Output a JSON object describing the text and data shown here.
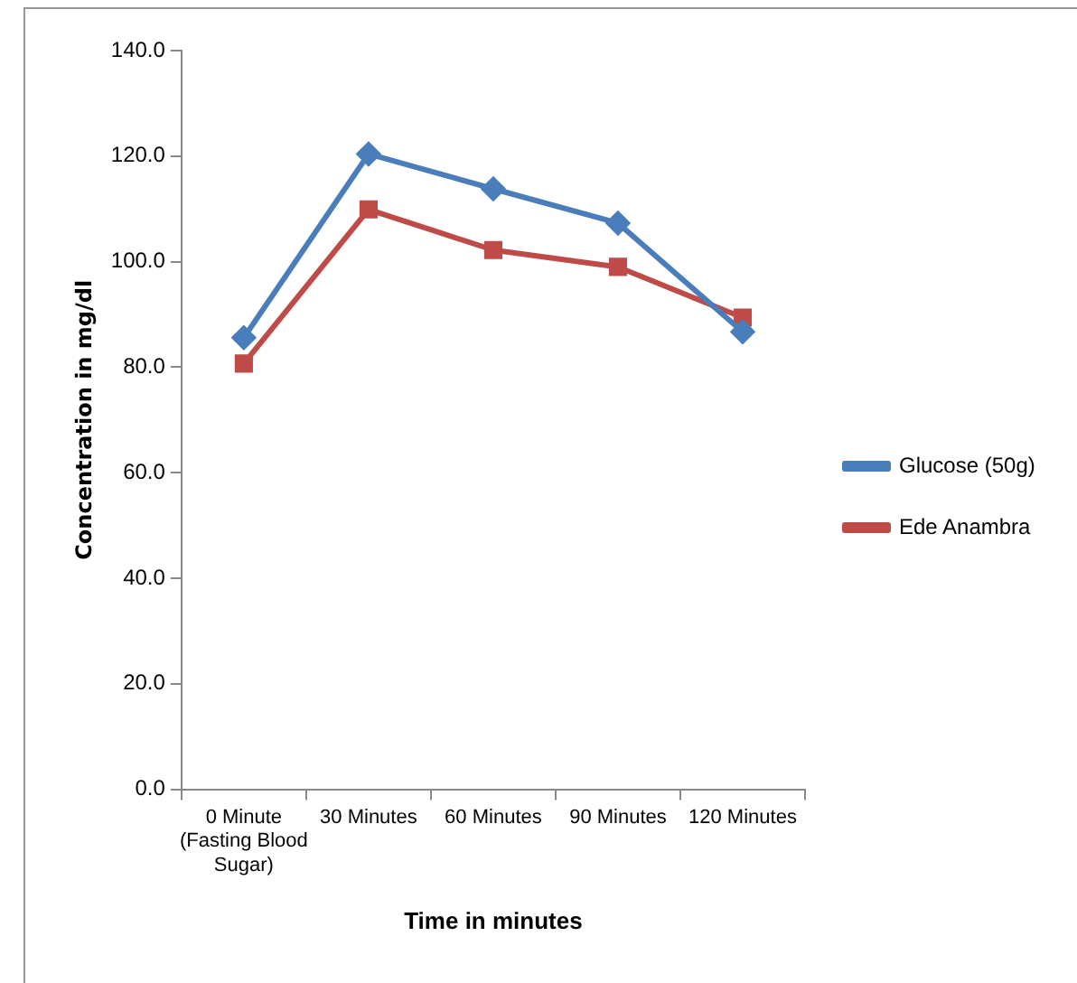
{
  "chart_data": {
    "type": "line",
    "xlabel": "Time in minutes",
    "ylabel": "Concentration in mg/dl",
    "categories": [
      "0 Minute (Fasting Blood Sugar)",
      "30 Minutes",
      "60 Minutes",
      "90 Minutes",
      "120 Minutes"
    ],
    "series": [
      {
        "name": "Glucose (50g)",
        "color": "#4a7ebb",
        "marker": "diamond",
        "values": [
          85.6,
          120.4,
          113.8,
          107.3,
          86.7
        ]
      },
      {
        "name": "Ede Anambra",
        "color": "#be4b48",
        "marker": "square",
        "values": [
          80.7,
          109.9,
          102.2,
          99.0,
          89.4
        ]
      }
    ],
    "ylim": [
      0,
      140
    ],
    "yticks": [
      {
        "value": 0,
        "label": "0.0"
      },
      {
        "value": 20,
        "label": "20.0"
      },
      {
        "value": 40,
        "label": "40.0"
      },
      {
        "value": 60,
        "label": "60.0"
      },
      {
        "value": 80,
        "label": "80.0"
      },
      {
        "value": 100,
        "label": "100.0"
      },
      {
        "value": 120,
        "label": "120.0"
      },
      {
        "value": 140,
        "label": "140.0"
      }
    ],
    "grid": false,
    "legend": "right"
  }
}
